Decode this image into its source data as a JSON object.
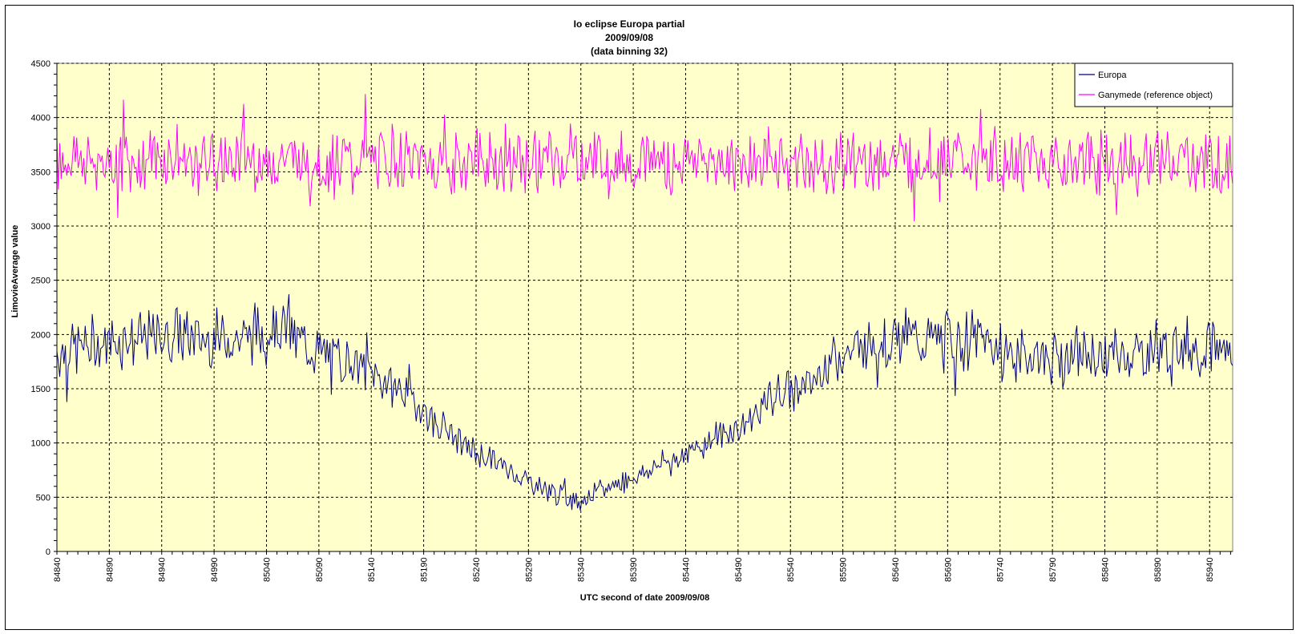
{
  "chart_data": {
    "type": "line",
    "title_lines": [
      "Io eclipse Europa partial",
      "2009/09/08",
      "(data binning 32)"
    ],
    "xlabel": "UTC second  of date 2009/09/08",
    "ylabel": "LimovieAverage value",
    "xlim": [
      84840,
      85962
    ],
    "ylim": [
      0,
      4500
    ],
    "yticks": [
      0,
      500,
      1000,
      1500,
      2000,
      2500,
      3000,
      3500,
      4000,
      4500
    ],
    "xticks": [
      84840,
      84890,
      84940,
      84990,
      85040,
      85090,
      85140,
      85190,
      85240,
      85290,
      85340,
      85390,
      85440,
      85490,
      85540,
      85590,
      85640,
      85690,
      85740,
      85790,
      85840,
      85890,
      85940
    ],
    "grid": true,
    "plot_background": "#ffffcc",
    "legend_position": "top-right",
    "series": [
      {
        "name": "Europa",
        "color": "#000080",
        "x": [
          84840,
          84860,
          84880,
          84900,
          84920,
          84940,
          84960,
          84980,
          85000,
          85020,
          85040,
          85060,
          85080,
          85100,
          85120,
          85140,
          85160,
          85180,
          85200,
          85220,
          85240,
          85260,
          85280,
          85300,
          85320,
          85340,
          85360,
          85380,
          85400,
          85420,
          85440,
          85460,
          85480,
          85500,
          85520,
          85540,
          85560,
          85580,
          85600,
          85620,
          85640,
          85660,
          85680,
          85700,
          85720,
          85740,
          85760,
          85780,
          85800,
          85820,
          85840,
          85860,
          85880,
          85900,
          85920,
          85940,
          85960
        ],
        "values": [
          1850,
          1900,
          1900,
          1950,
          1950,
          1980,
          1980,
          1950,
          1950,
          1980,
          2050,
          2080,
          1850,
          1800,
          1750,
          1650,
          1550,
          1400,
          1200,
          1050,
          900,
          820,
          700,
          600,
          520,
          470,
          560,
          650,
          720,
          820,
          900,
          1000,
          1100,
          1200,
          1400,
          1500,
          1550,
          1800,
          1850,
          1950,
          2000,
          1950,
          1950,
          1950,
          1950,
          1850,
          1800,
          1800,
          1800,
          1800,
          1800,
          1800,
          1850,
          1850,
          1900,
          1900,
          1850
        ]
      },
      {
        "name": "Ganymede (reference object)",
        "color": "#ff00ff",
        "x": [
          84840,
          84860,
          84880,
          84900,
          84920,
          84940,
          84960,
          84980,
          85000,
          85020,
          85040,
          85060,
          85080,
          85100,
          85120,
          85140,
          85160,
          85180,
          85200,
          85220,
          85240,
          85260,
          85280,
          85300,
          85320,
          85340,
          85360,
          85380,
          85400,
          85420,
          85440,
          85460,
          85480,
          85500,
          85520,
          85540,
          85560,
          85580,
          85600,
          85620,
          85640,
          85660,
          85680,
          85700,
          85720,
          85740,
          85760,
          85780,
          85800,
          85820,
          85840,
          85860,
          85880,
          85900,
          85920,
          85940,
          85960
        ],
        "values": [
          3600,
          3600,
          3600,
          3600,
          3600,
          3600,
          3600,
          3600,
          3600,
          3600,
          3600,
          3600,
          3600,
          3600,
          3600,
          3600,
          3600,
          3600,
          3600,
          3600,
          3600,
          3600,
          3600,
          3600,
          3600,
          3600,
          3600,
          3600,
          3600,
          3600,
          3600,
          3600,
          3600,
          3600,
          3600,
          3600,
          3600,
          3600,
          3600,
          3600,
          3600,
          3600,
          3600,
          3600,
          3600,
          3600,
          3600,
          3600,
          3600,
          3600,
          3600,
          3600,
          3600,
          3600,
          3600,
          3600,
          3600
        ]
      }
    ]
  }
}
